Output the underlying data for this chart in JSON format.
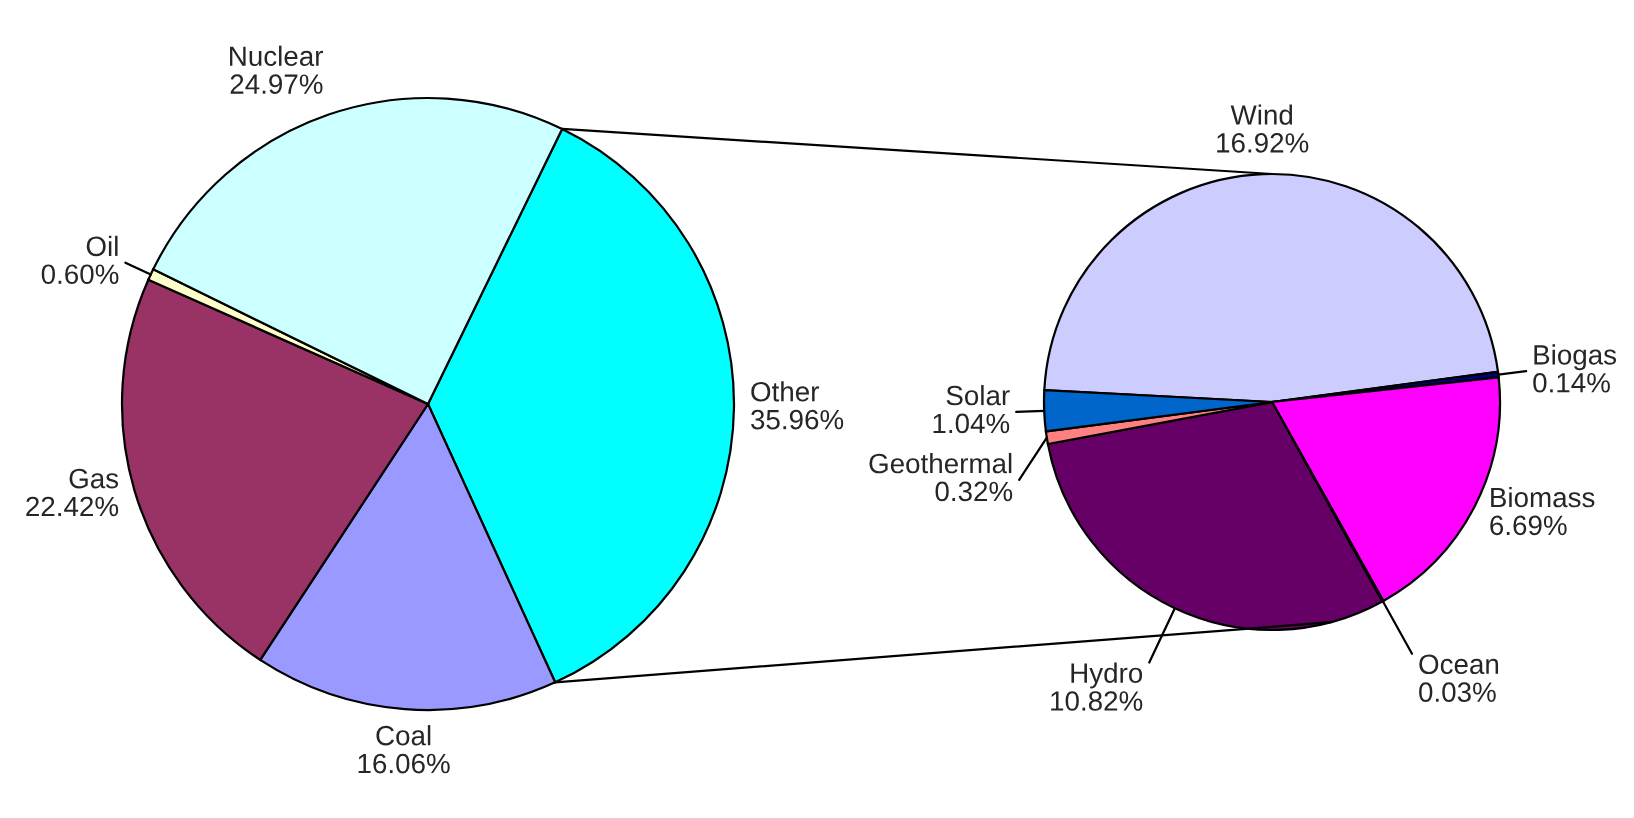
{
  "chart_data": [
    {
      "type": "pie",
      "categories": [
        "Other",
        "Coal",
        "Gas",
        "Oil",
        "Nuclear"
      ],
      "values": [
        35.96,
        16.06,
        22.42,
        0.6,
        24.97
      ],
      "value_labels": [
        "35.96%",
        "16.06%",
        "22.42%",
        "0.60%",
        "24.97%"
      ],
      "colors": [
        "#00ffff",
        "#9999ff",
        "#993366",
        "#ffffcc",
        "#ccffff"
      ]
    },
    {
      "type": "pie",
      "categories": [
        "Wind",
        "Biogas",
        "Biomass",
        "Ocean",
        "Hydro",
        "Geothermal",
        "Solar"
      ],
      "values": [
        16.92,
        0.14,
        6.69,
        0.03,
        10.82,
        0.32,
        1.04
      ],
      "value_labels": [
        "16.92%",
        "0.14%",
        "6.69%",
        "0.03%",
        "10.82%",
        "0.32%",
        "1.04%"
      ],
      "colors": [
        "#ccccff",
        "#000080",
        "#ff00ff",
        "#0000ff",
        "#660066",
        "#ff8080",
        "#0066cc"
      ]
    }
  ]
}
